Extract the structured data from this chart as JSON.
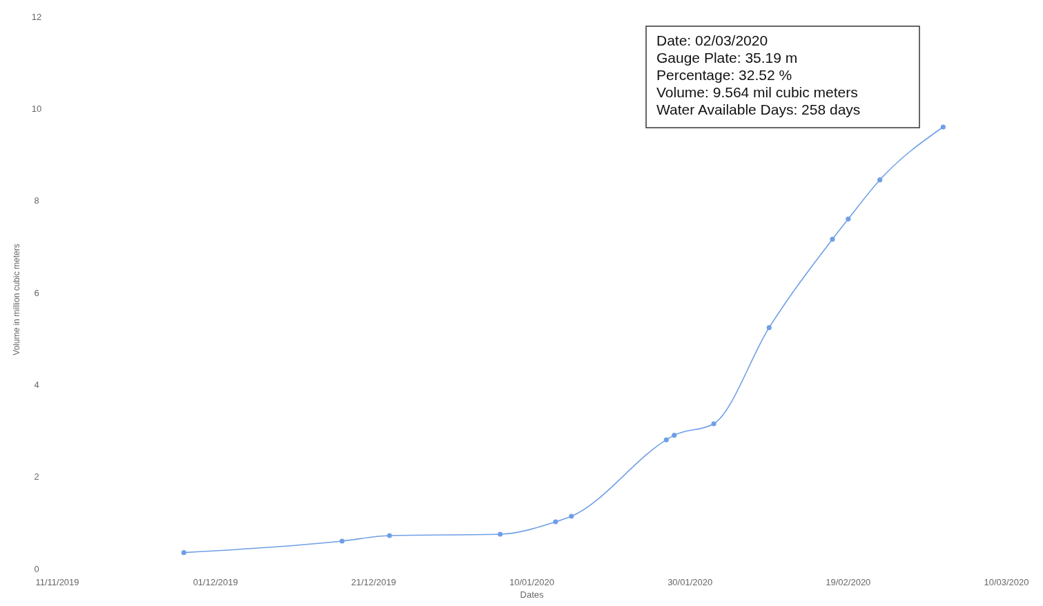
{
  "chart_data": {
    "type": "line",
    "xlabel": "Dates",
    "ylabel": "Volume in million cubic meters",
    "x": [
      "2019-11-27",
      "2019-12-17",
      "2019-12-23",
      "2020-01-06",
      "2020-01-13",
      "2020-01-15",
      "2020-01-27",
      "2020-01-28",
      "2020-02-02",
      "2020-02-09",
      "2020-02-17",
      "2020-02-19",
      "2020-02-23",
      "2020-03-02"
    ],
    "series": [
      {
        "color": "#6f9fe6",
        "values": [
          0.35,
          0.6,
          0.72,
          0.75,
          1.02,
          1.14,
          2.8,
          2.9,
          3.15,
          5.24,
          7.16,
          7.6,
          8.45,
          9.6
        ]
      }
    ],
    "xlim": [
      "2019-11-11",
      "2020-03-10"
    ],
    "xticks": [
      {
        "value": "2019-11-11",
        "label": "11/11/2019"
      },
      {
        "value": "2019-12-01",
        "label": "01/12/2019"
      },
      {
        "value": "2019-12-21",
        "label": "21/12/2019"
      },
      {
        "value": "2020-01-10",
        "label": "10/01/2020"
      },
      {
        "value": "2020-01-30",
        "label": "30/01/2020"
      },
      {
        "value": "2020-02-19",
        "label": "19/02/2020"
      },
      {
        "value": "2020-03-10",
        "label": "10/03/2020"
      }
    ],
    "ylim": [
      0,
      12
    ],
    "yticks": [
      0,
      2,
      4,
      6,
      8,
      10,
      12
    ],
    "marker": "circle",
    "grid": false,
    "annotations": [
      "Date: 02/03/2020\nGauge Plate: 35.19 m\nPercentage: 32.52 %\nVolume: 9.564 mil cubic meters\nWater Available Days: 258 days"
    ]
  }
}
